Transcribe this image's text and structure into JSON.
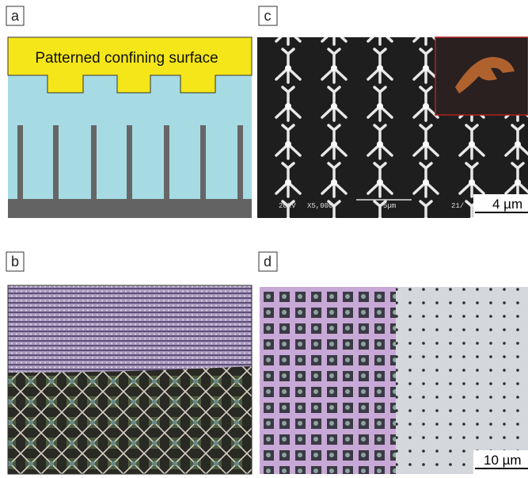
{
  "panels": [
    {
      "label": "a",
      "caption": "Patterned confining surface"
    },
    {
      "label": "c",
      "scale_bar": "4 µm",
      "sem_info": [
        "20kV",
        "X5,000",
        "5µm",
        "21/"
      ]
    },
    {
      "label": "b"
    },
    {
      "label": "d",
      "scale_bar": "10 µm"
    }
  ]
}
